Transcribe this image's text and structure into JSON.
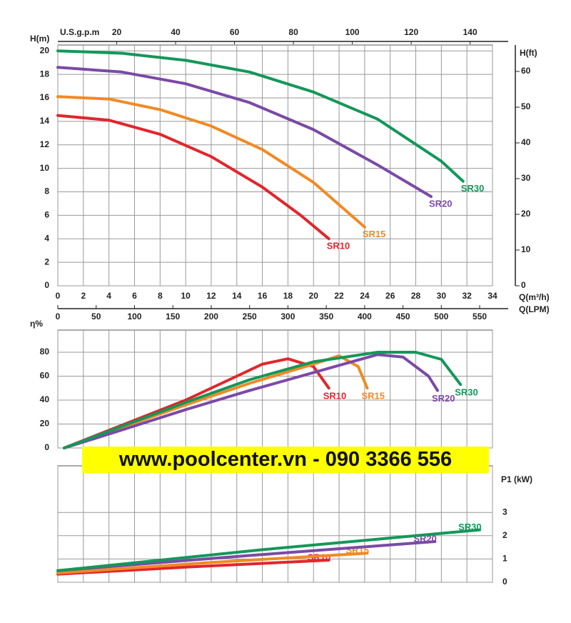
{
  "chart_data": [
    {
      "type": "line",
      "y_label": "H(m)",
      "y2_label": "H(ft)",
      "x_label": "Q(m³/h)",
      "x2_label": "Q(LPM)",
      "x_top_label": "U.S.g.p.m",
      "xlim": [
        0,
        34
      ],
      "xticks": [
        0,
        2,
        4,
        6,
        8,
        10,
        12,
        14,
        16,
        18,
        20,
        22,
        24,
        26,
        28,
        30,
        32,
        34
      ],
      "ylim": [
        0,
        20.5
      ],
      "yticks": [
        0,
        2,
        4,
        6,
        8,
        10,
        12,
        14,
        16,
        18,
        20
      ],
      "y2lim": [
        0,
        67.4
      ],
      "y2ticks": [
        0,
        10,
        20,
        30,
        40,
        50,
        60
      ],
      "x_top_lim": [
        0,
        147.6
      ],
      "x_top_ticks": [
        20,
        40,
        60,
        80,
        100,
        120,
        140
      ],
      "x2lim": [
        0,
        566.7
      ],
      "x2ticks": [
        0,
        50,
        100,
        150,
        200,
        250,
        300,
        350,
        400,
        450,
        500,
        550
      ],
      "grid": true,
      "series": [
        {
          "name": "SR10",
          "color": "#e1262c",
          "x": [
            0,
            4,
            8,
            12,
            16,
            19,
            21.2
          ],
          "values": [
            14.5,
            14.1,
            12.9,
            11.0,
            8.4,
            6.0,
            4.0
          ]
        },
        {
          "name": "SR15",
          "color": "#f08a24",
          "x": [
            0,
            4,
            8,
            12,
            16,
            20,
            24
          ],
          "values": [
            16.1,
            15.9,
            15.0,
            13.6,
            11.6,
            8.8,
            5.0
          ]
        },
        {
          "name": "SR20",
          "color": "#7a4aa6",
          "x": [
            0,
            5,
            10,
            15,
            20,
            25,
            29.2
          ],
          "values": [
            18.6,
            18.2,
            17.2,
            15.6,
            13.3,
            10.3,
            7.6
          ]
        },
        {
          "name": "SR30",
          "color": "#14975a",
          "x": [
            0,
            5,
            10,
            15,
            20,
            25,
            30,
            31.7
          ],
          "values": [
            20.0,
            19.8,
            19.2,
            18.2,
            16.5,
            14.2,
            10.6,
            8.9
          ]
        }
      ]
    },
    {
      "type": "line",
      "y_label": "η%",
      "xlim": [
        0,
        34
      ],
      "xticks": [
        0,
        2,
        4,
        6,
        8,
        10,
        12,
        14,
        16,
        18,
        20,
        22,
        24,
        26,
        28,
        30,
        32,
        34
      ],
      "ylim": [
        0,
        98.5
      ],
      "yticks": [
        0,
        20,
        40,
        60,
        80
      ],
      "grid": true,
      "series": [
        {
          "name": "SR10",
          "color": "#e1262c",
          "x": [
            0.5,
            5,
            10,
            14,
            16,
            18,
            20,
            21.2
          ],
          "values": [
            0,
            19,
            40,
            60,
            70,
            74.5,
            68,
            50
          ]
        },
        {
          "name": "SR15",
          "color": "#f08a24",
          "x": [
            0.5,
            5,
            10,
            15,
            20,
            22,
            23.5,
            24.2
          ],
          "values": [
            0,
            17,
            36,
            54,
            70,
            77,
            68,
            50
          ]
        },
        {
          "name": "SR20",
          "color": "#7a4aa6",
          "x": [
            0.5,
            5,
            10,
            15,
            20,
            25,
            27,
            29,
            29.7
          ],
          "values": [
            0,
            15,
            32,
            48,
            63,
            78,
            76,
            60,
            48
          ]
        },
        {
          "name": "SR30",
          "color": "#14975a",
          "x": [
            0.5,
            5,
            10,
            15,
            20,
            25,
            28,
            30,
            31.5
          ],
          "values": [
            0,
            18,
            38,
            57,
            72,
            80,
            80,
            74,
            53
          ]
        }
      ]
    },
    {
      "type": "line",
      "y_label": "P1 (kW)",
      "yaxis_side": "right",
      "xlim": [
        0,
        34
      ],
      "xticks": [
        0,
        2,
        4,
        6,
        8,
        10,
        12,
        14,
        16,
        18,
        20,
        22,
        24,
        26,
        28,
        30,
        32,
        34
      ],
      "ylim": [
        0,
        5
      ],
      "yticks": [
        0,
        1,
        2,
        3
      ],
      "grid": true,
      "series": [
        {
          "name": "SR10",
          "color": "#e1262c",
          "x": [
            0,
            10,
            21.2
          ],
          "values": [
            0.35,
            0.65,
            0.95
          ]
        },
        {
          "name": "SR15",
          "color": "#f08a24",
          "x": [
            0,
            12,
            24.2
          ],
          "values": [
            0.4,
            0.85,
            1.25
          ]
        },
        {
          "name": "SR20",
          "color": "#7a4aa6",
          "x": [
            0,
            15,
            29.5
          ],
          "values": [
            0.5,
            1.15,
            1.75
          ]
        },
        {
          "name": "SR30",
          "color": "#14975a",
          "x": [
            0,
            16,
            33
          ],
          "values": [
            0.5,
            1.4,
            2.25
          ]
        }
      ]
    }
  ],
  "watermark": "www.poolcenter.vn - 090 3366 556"
}
